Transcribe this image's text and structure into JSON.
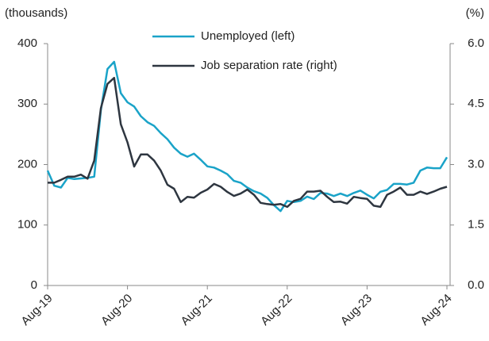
{
  "chart_data": {
    "type": "line",
    "y_label": "(thousands)",
    "y2_label": "(%)",
    "categories": [
      "Aug-19",
      null,
      null,
      null,
      null,
      null,
      null,
      null,
      null,
      null,
      null,
      null,
      "Aug-20",
      null,
      null,
      null,
      null,
      null,
      null,
      null,
      null,
      null,
      null,
      null,
      "Aug-21",
      null,
      null,
      null,
      null,
      null,
      null,
      null,
      null,
      null,
      null,
      null,
      "Aug-22",
      null,
      null,
      null,
      null,
      null,
      null,
      null,
      null,
      null,
      null,
      null,
      "Aug-23",
      null,
      null,
      null,
      null,
      null,
      null,
      null,
      null,
      null,
      null,
      null,
      "Aug-24"
    ],
    "series": [
      {
        "name": "Unemployed (left)",
        "color": "#1aa3c8",
        "axis": "y",
        "values": [
          190,
          165,
          162,
          178,
          176,
          177,
          178,
          180,
          290,
          358,
          370,
          318,
          303,
          296,
          280,
          270,
          264,
          252,
          242,
          228,
          218,
          213,
          218,
          208,
          197,
          195,
          190,
          184,
          173,
          170,
          162,
          156,
          152,
          145,
          133,
          123,
          140,
          138,
          140,
          147,
          143,
          153,
          152,
          148,
          152,
          148,
          153,
          157,
          150,
          144,
          155,
          158,
          168,
          168,
          167,
          170,
          190,
          195,
          194,
          194,
          212
        ]
      },
      {
        "name": "Job separation rate (right)",
        "color": "#2e3640",
        "axis": "y2",
        "values": [
          2.55,
          2.55,
          2.62,
          2.7,
          2.7,
          2.75,
          2.65,
          3.1,
          4.4,
          5.0,
          5.15,
          4.0,
          3.55,
          2.95,
          3.25,
          3.25,
          3.1,
          2.85,
          2.5,
          2.4,
          2.07,
          2.2,
          2.18,
          2.3,
          2.38,
          2.52,
          2.45,
          2.32,
          2.22,
          2.28,
          2.38,
          2.25,
          2.05,
          2.02,
          2.0,
          2.02,
          1.95,
          2.1,
          2.15,
          2.33,
          2.33,
          2.35,
          2.2,
          2.07,
          2.08,
          2.03,
          2.2,
          2.17,
          2.15,
          1.98,
          1.95,
          2.25,
          2.33,
          2.43,
          2.25,
          2.25,
          2.33,
          2.27,
          2.33,
          2.4,
          2.45
        ]
      }
    ],
    "ylim": [
      0,
      400
    ],
    "yticks": [
      0,
      100,
      200,
      300,
      400
    ],
    "y2lim": [
      0,
      6
    ],
    "y2ticks": [
      {
        "value": 0,
        "label": "0.0"
      },
      1.5,
      {
        "value": 3,
        "label": "3.0"
      },
      4.5,
      {
        "value": 6,
        "label": "6.0"
      }
    ],
    "grid": false
  }
}
